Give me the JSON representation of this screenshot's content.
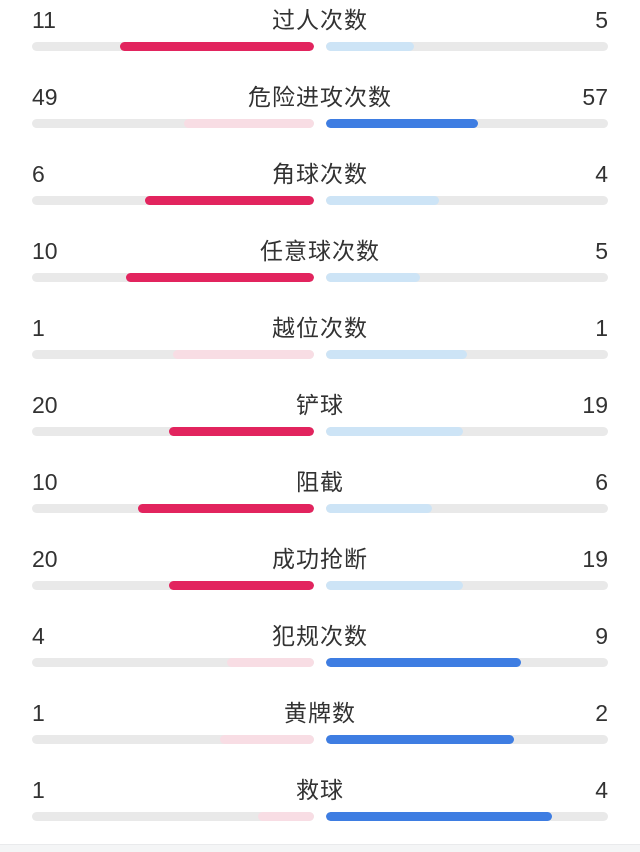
{
  "colors": {
    "home_strong": "#e2245e",
    "home_light": "#f8dde4",
    "away_strong": "#3e7de2",
    "away_light": "#cde4f6",
    "track": "#e9e9e9",
    "text": "#323232"
  },
  "rows": [
    {
      "label": "过人次数",
      "home": 11,
      "away": 5
    },
    {
      "label": "危险进攻次数",
      "home": 49,
      "away": 57
    },
    {
      "label": "角球次数",
      "home": 6,
      "away": 4
    },
    {
      "label": "任意球次数",
      "home": 10,
      "away": 5
    },
    {
      "label": "越位次数",
      "home": 1,
      "away": 1
    },
    {
      "label": "铲球",
      "home": 20,
      "away": 19
    },
    {
      "label": "阻截",
      "home": 10,
      "away": 6
    },
    {
      "label": "成功抢断",
      "home": 20,
      "away": 19
    },
    {
      "label": "犯规次数",
      "home": 4,
      "away": 9
    },
    {
      "label": "黄牌数",
      "home": 1,
      "away": 2
    },
    {
      "label": "救球",
      "home": 1,
      "away": 4
    }
  ],
  "chart_data": {
    "type": "bar",
    "subtype": "split-horizontal-comparison",
    "title": "",
    "categories": [
      "过人次数",
      "危险进攻次数",
      "角球次数",
      "任意球次数",
      "越位次数",
      "铲球",
      "阻截",
      "成功抢断",
      "犯规次数",
      "黄牌数",
      "救球"
    ],
    "series": [
      {
        "name": "home",
        "values": [
          11,
          49,
          6,
          10,
          1,
          20,
          10,
          20,
          4,
          1,
          1
        ]
      },
      {
        "name": "away",
        "values": [
          5,
          57,
          4,
          5,
          1,
          19,
          6,
          19,
          9,
          2,
          4
        ]
      }
    ],
    "layout_hints": {
      "bars_fill_from_center_outward": true,
      "fill_fraction": "value / (home + away)",
      "winner_side_uses_strong_color": true,
      "tie_uses_light_colors_both_sides": true,
      "grid": false,
      "legend": false
    }
  }
}
